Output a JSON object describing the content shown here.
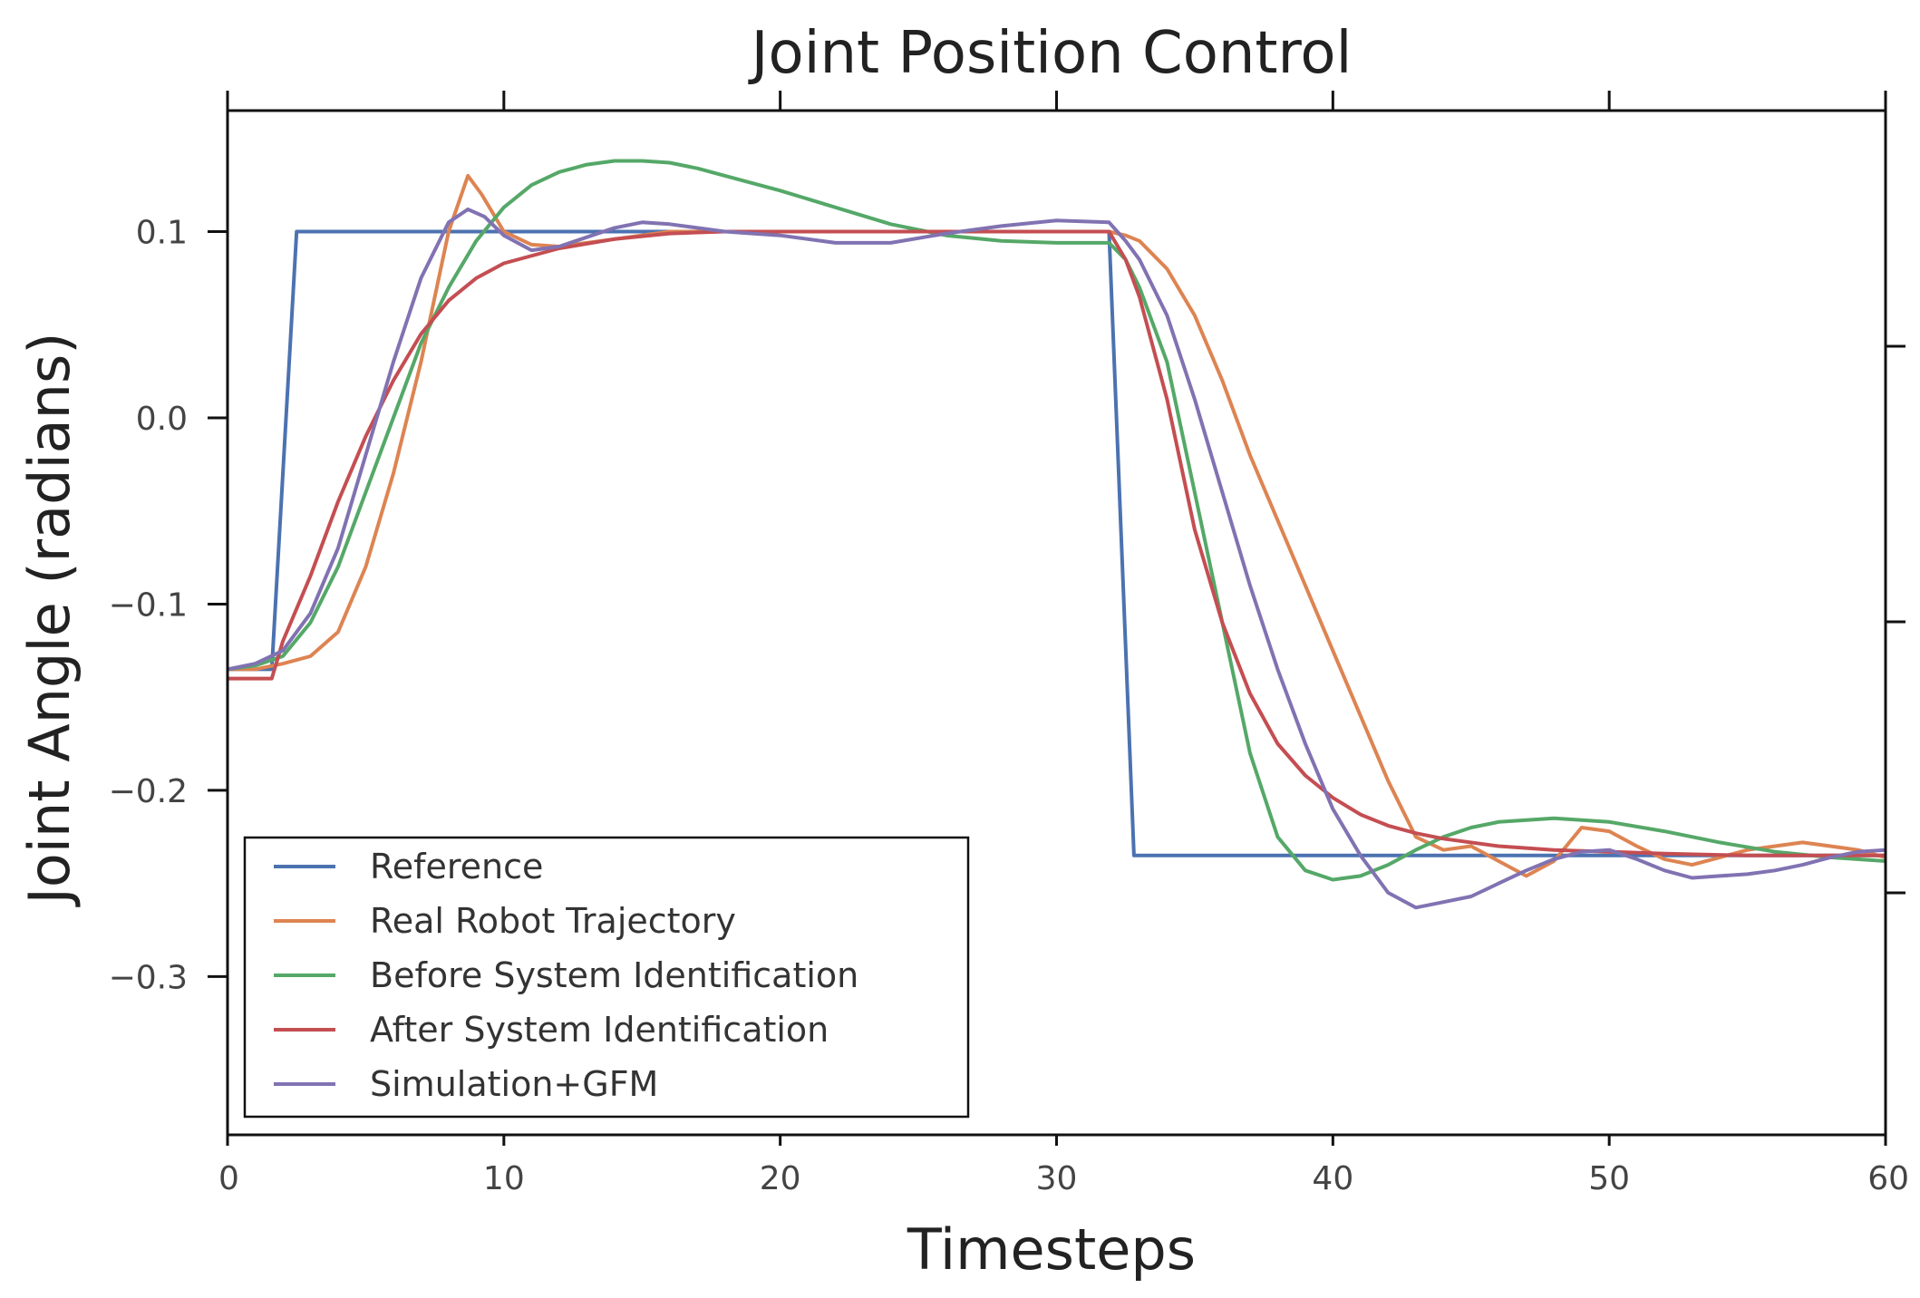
{
  "chart_data": {
    "type": "line",
    "title": "Joint Position Control",
    "xlabel": "Timesteps",
    "ylabel": "Joint Angle (radians)",
    "xlim": [
      0,
      60
    ],
    "ylim": [
      -0.385,
      0.165
    ],
    "xticks": [
      0,
      10,
      20,
      30,
      40,
      50,
      60
    ],
    "xtick_labels": [
      "0",
      "10",
      "20",
      "30",
      "40",
      "50",
      "60"
    ],
    "yticks": [
      0.1,
      0.0,
      -0.1,
      -0.2,
      -0.3
    ],
    "ytick_labels": [
      "0.1",
      "0.0",
      "−0.1",
      "−0.2",
      "−0.3"
    ],
    "grid": false,
    "legend_position": "lower-left",
    "series": [
      {
        "name": "Reference",
        "color": "#4c72b0",
        "x": [
          0,
          1.6,
          2.5,
          31.9,
          32.8,
          60
        ],
        "y": [
          -0.135,
          -0.135,
          0.1,
          0.1,
          -0.235,
          -0.235
        ]
      },
      {
        "name": "Real Robot Trajectory",
        "color": "#dd8452",
        "x": [
          0,
          1,
          2,
          3,
          4,
          5,
          6,
          7,
          8,
          8.7,
          9.2,
          10,
          11,
          12,
          14,
          16,
          18,
          20,
          22,
          24,
          26,
          28,
          30,
          31.9,
          32.5,
          33,
          34,
          35,
          36,
          37,
          38,
          39,
          40,
          41,
          42,
          43,
          44,
          45,
          46,
          47,
          48,
          49,
          50,
          51,
          52,
          53,
          54,
          55,
          56,
          57,
          58,
          59,
          60
        ],
        "y": [
          -0.135,
          -0.135,
          -0.132,
          -0.128,
          -0.115,
          -0.08,
          -0.03,
          0.03,
          0.1,
          0.13,
          0.12,
          0.1,
          0.093,
          0.092,
          0.096,
          0.1,
          0.1,
          0.1,
          0.1,
          0.1,
          0.1,
          0.1,
          0.1,
          0.1,
          0.098,
          0.095,
          0.08,
          0.055,
          0.02,
          -0.02,
          -0.055,
          -0.09,
          -0.125,
          -0.16,
          -0.195,
          -0.225,
          -0.232,
          -0.23,
          -0.238,
          -0.246,
          -0.238,
          -0.22,
          -0.222,
          -0.23,
          -0.237,
          -0.24,
          -0.236,
          -0.232,
          -0.23,
          -0.228,
          -0.23,
          -0.232,
          -0.236
        ]
      },
      {
        "name": "Before System Identification",
        "color": "#55a868",
        "x": [
          0,
          1,
          2,
          3,
          4,
          5,
          6,
          7,
          8,
          9,
          10,
          11,
          12,
          13,
          14,
          15,
          16,
          17,
          18,
          20,
          22,
          24,
          26,
          28,
          30,
          31.9,
          32.5,
          33,
          34,
          35,
          36,
          37,
          38,
          39,
          40,
          41,
          42,
          43,
          44,
          45,
          46,
          48,
          50,
          52,
          54,
          56,
          58,
          60
        ],
        "y": [
          -0.135,
          -0.133,
          -0.128,
          -0.11,
          -0.08,
          -0.04,
          0.0,
          0.04,
          0.07,
          0.095,
          0.113,
          0.125,
          0.132,
          0.136,
          0.138,
          0.138,
          0.137,
          0.134,
          0.13,
          0.122,
          0.113,
          0.104,
          0.098,
          0.095,
          0.094,
          0.094,
          0.085,
          0.07,
          0.03,
          -0.04,
          -0.11,
          -0.18,
          -0.225,
          -0.243,
          -0.248,
          -0.246,
          -0.24,
          -0.232,
          -0.225,
          -0.22,
          -0.217,
          -0.215,
          -0.217,
          -0.222,
          -0.228,
          -0.233,
          -0.236,
          -0.238
        ]
      },
      {
        "name": "After System Identification",
        "color": "#c44e52",
        "x": [
          0,
          1.6,
          2,
          3,
          4,
          5,
          6,
          7,
          8,
          9,
          10,
          12,
          14,
          16,
          18,
          20,
          24,
          28,
          31.9,
          32.5,
          33,
          34,
          35,
          36,
          37,
          38,
          39,
          40,
          41,
          42,
          43,
          44,
          46,
          48,
          50,
          52,
          55,
          58,
          60
        ],
        "y": [
          -0.14,
          -0.14,
          -0.12,
          -0.085,
          -0.045,
          -0.01,
          0.02,
          0.045,
          0.063,
          0.075,
          0.083,
          0.091,
          0.096,
          0.099,
          0.1,
          0.1,
          0.1,
          0.1,
          0.1,
          0.085,
          0.065,
          0.01,
          -0.06,
          -0.11,
          -0.148,
          -0.175,
          -0.192,
          -0.204,
          -0.213,
          -0.219,
          -0.223,
          -0.226,
          -0.23,
          -0.232,
          -0.233,
          -0.234,
          -0.235,
          -0.235,
          -0.235
        ]
      },
      {
        "name": "Simulation+GFM",
        "color": "#8172b2",
        "x": [
          0,
          1,
          2,
          3,
          4,
          5,
          6,
          7,
          8,
          8.7,
          9.3,
          10,
          11,
          12,
          13,
          14,
          15,
          16,
          17,
          18,
          20,
          22,
          24,
          26,
          28,
          30,
          31.9,
          32.5,
          33,
          34,
          35,
          36,
          37,
          38,
          39,
          40,
          41,
          42,
          43,
          44,
          45,
          46,
          47,
          48,
          49,
          50,
          51,
          52,
          53,
          54,
          55,
          56,
          57,
          58,
          59,
          60
        ],
        "y": [
          -0.135,
          -0.132,
          -0.125,
          -0.105,
          -0.07,
          -0.02,
          0.03,
          0.075,
          0.105,
          0.112,
          0.108,
          0.098,
          0.09,
          0.092,
          0.097,
          0.102,
          0.105,
          0.104,
          0.102,
          0.1,
          0.098,
          0.094,
          0.094,
          0.099,
          0.103,
          0.106,
          0.105,
          0.095,
          0.085,
          0.055,
          0.01,
          -0.04,
          -0.09,
          -0.135,
          -0.175,
          -0.21,
          -0.235,
          -0.255,
          -0.263,
          -0.26,
          -0.257,
          -0.25,
          -0.243,
          -0.237,
          -0.233,
          -0.232,
          -0.237,
          -0.243,
          -0.247,
          -0.246,
          -0.245,
          -0.243,
          -0.24,
          -0.236,
          -0.233,
          -0.232
        ]
      }
    ]
  }
}
